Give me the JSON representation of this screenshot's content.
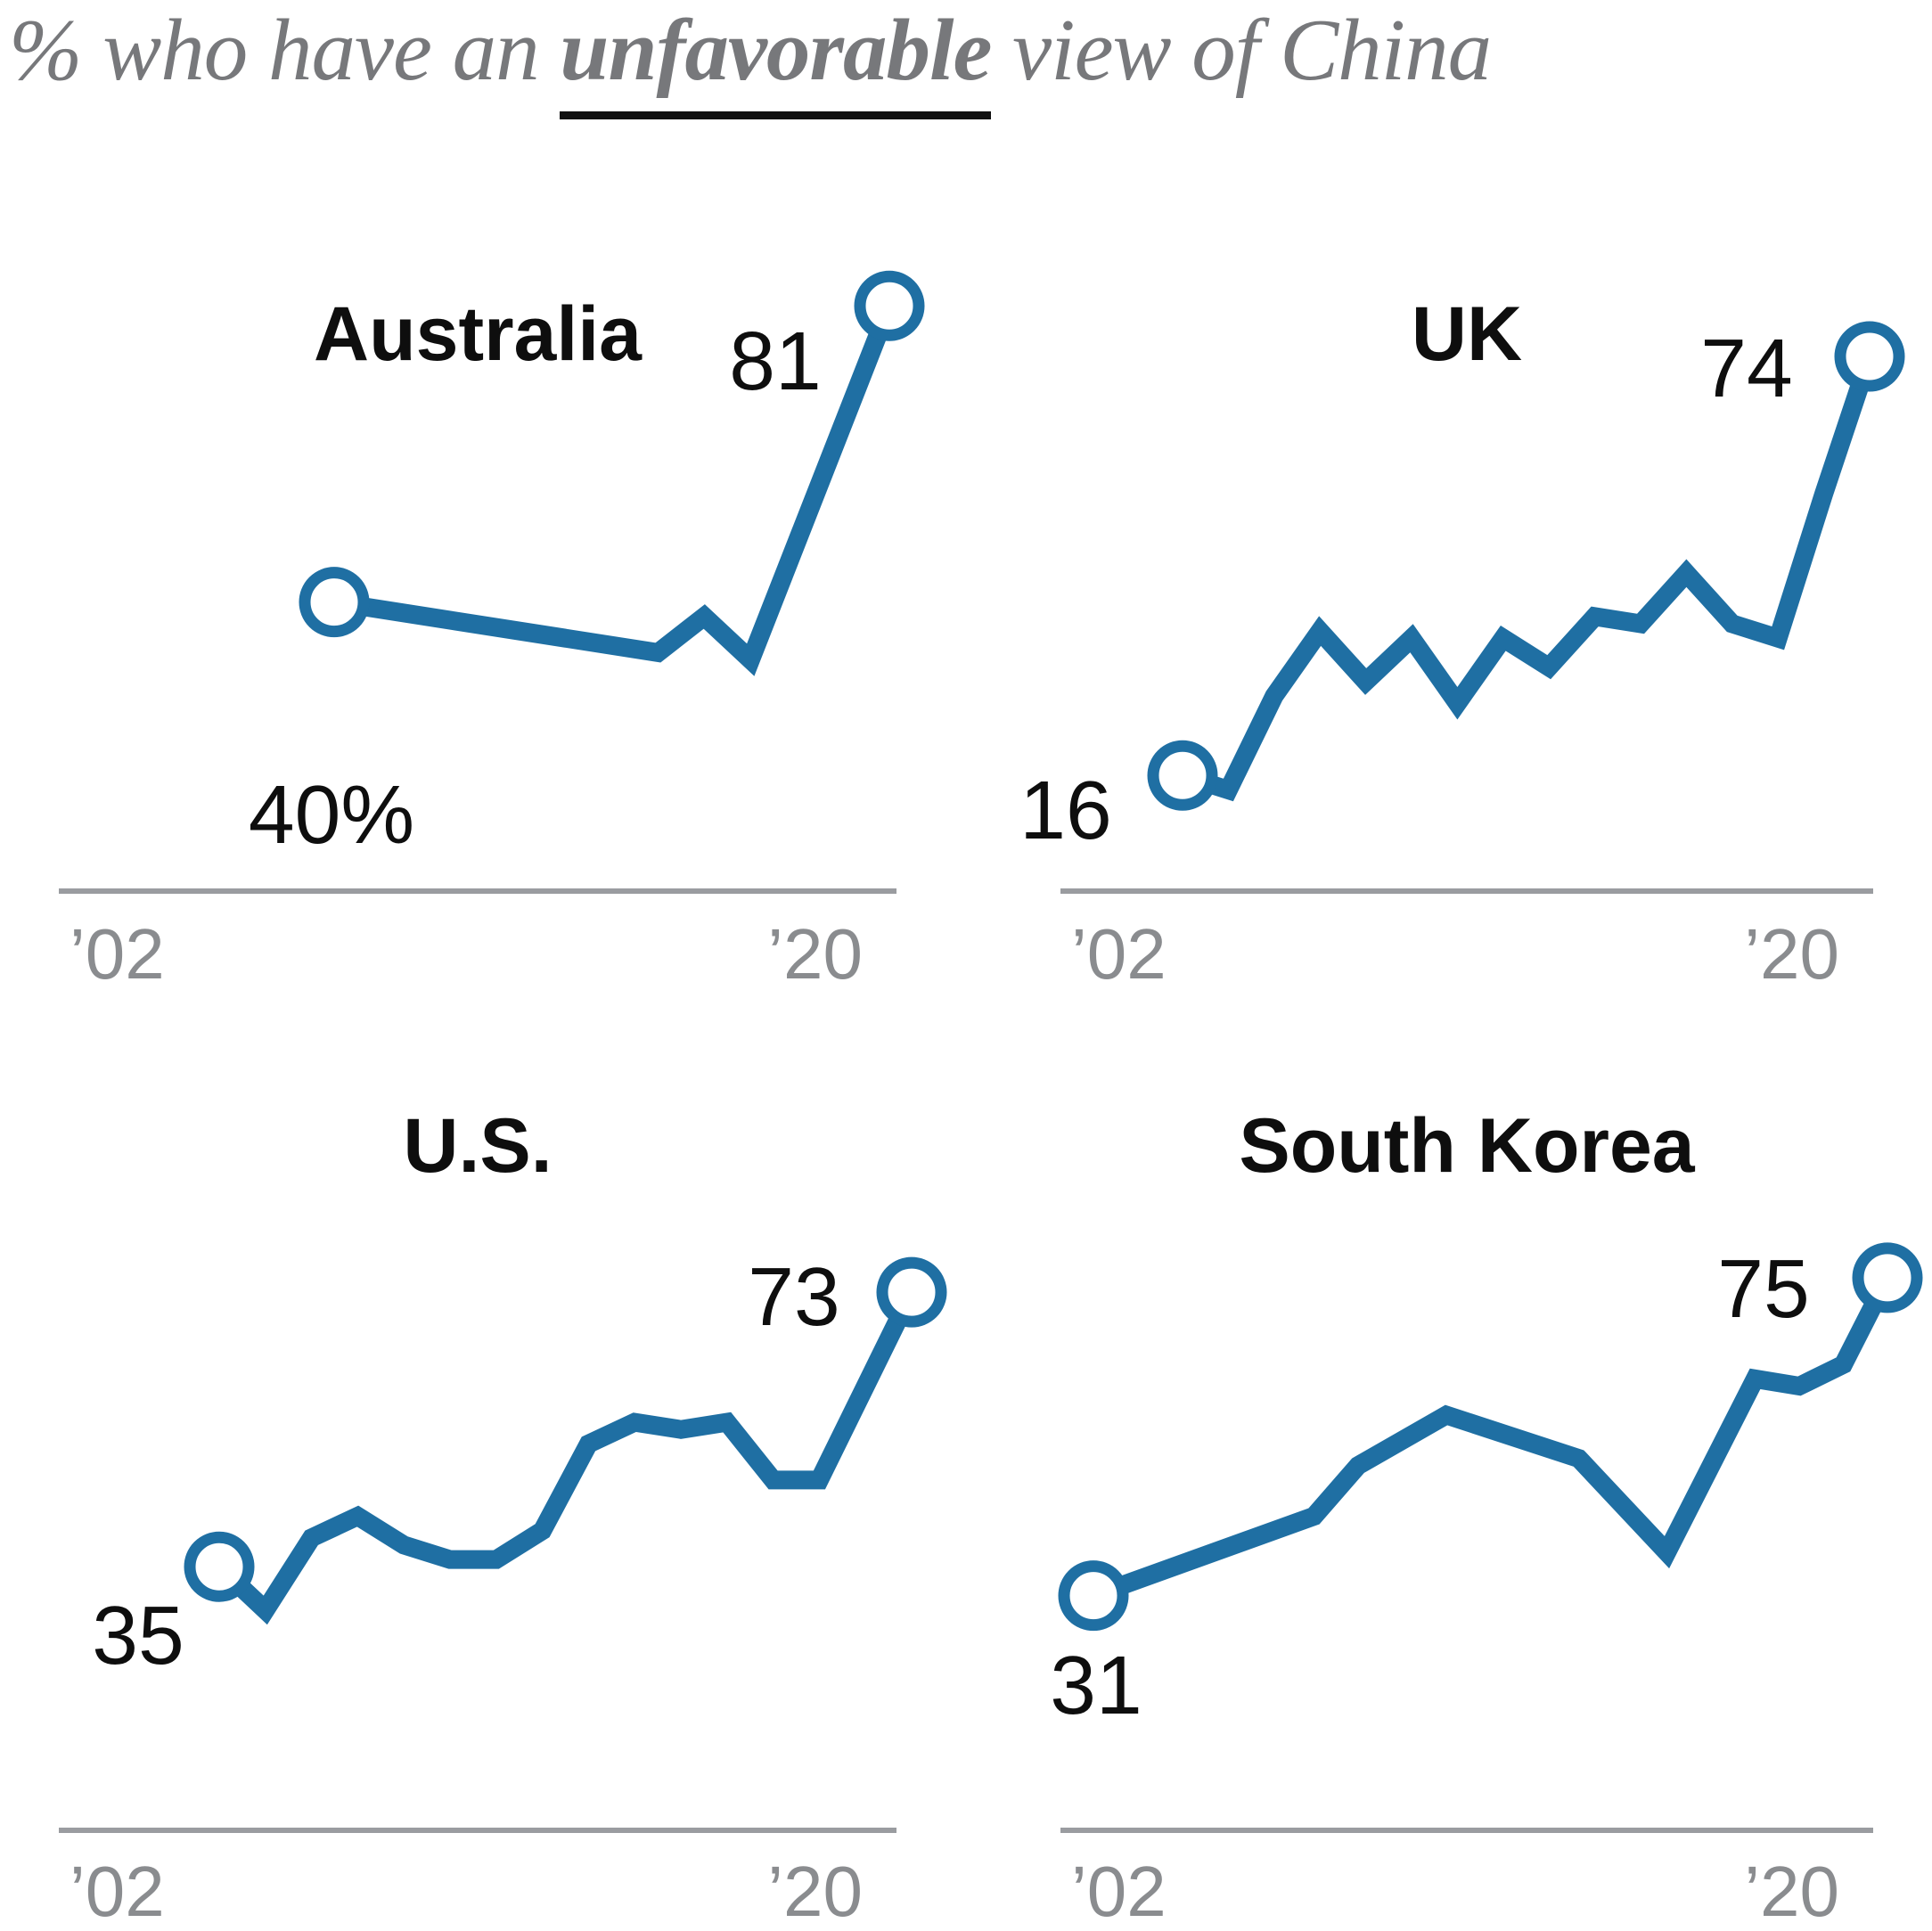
{
  "header": {
    "title_prefix": "% who have an ",
    "title_emphasis": "unfavorable",
    "title_suffix": " view of China"
  },
  "colors": {
    "line_blue": "#1f6fa3",
    "title_gray": "#77787b",
    "tick_gray": "#8a8c8f",
    "axis_gray": "#9a9ca0",
    "label_black": "#0e0e0e",
    "underline_black": "#111111",
    "marker_fill": "#ffffff"
  },
  "chart_data": [
    {
      "type": "line",
      "country": "Australia",
      "x": [
        2008,
        2013,
        2015,
        2016,
        2017,
        2020
      ],
      "values": [
        40,
        35,
        33,
        38,
        32,
        81
      ],
      "x_spacing": "years",
      "first_point_label": "40%",
      "last_point_label": "81",
      "tick_labels": [
        "’02",
        "’20"
      ],
      "xlim": [
        2002,
        2020
      ],
      "ylim": [
        0,
        90
      ],
      "grid": false,
      "legend": "none"
    },
    {
      "type": "line",
      "country": "UK",
      "x": [
        2002,
        2006,
        2007,
        2008,
        2009,
        2010,
        2011,
        2012,
        2013,
        2014,
        2015,
        2016,
        2017,
        2018,
        2019,
        2020
      ],
      "values": [
        16,
        14,
        27,
        36,
        29,
        35,
        26,
        35,
        31,
        38,
        37,
        44,
        37,
        35,
        55,
        74
      ],
      "x_spacing": "equal",
      "first_point_label": "16",
      "last_point_label": "74",
      "tick_labels": [
        "’02",
        "’20"
      ],
      "xlim": [
        2002,
        2020
      ],
      "ylim": [
        0,
        90
      ],
      "grid": false,
      "legend": "none"
    },
    {
      "type": "line",
      "country": "U.S.",
      "x": [
        2002,
        2006,
        2007,
        2008,
        2009,
        2010,
        2011,
        2012,
        2013,
        2014,
        2015,
        2016,
        2017,
        2018,
        2019,
        2020
      ],
      "values": [
        35,
        29,
        39,
        42,
        38,
        36,
        36,
        40,
        52,
        55,
        54,
        55,
        47,
        47,
        60,
        73
      ],
      "x_spacing": "equal",
      "first_point_label": "35",
      "last_point_label": "73",
      "tick_labels": [
        "’02",
        "’20"
      ],
      "xlim": [
        2002,
        2020
      ],
      "ylim": [
        0,
        90
      ],
      "grid": false,
      "legend": "none"
    },
    {
      "type": "line",
      "country": "South Korea",
      "x": [
        2002,
        2007,
        2008,
        2010,
        2013,
        2015,
        2017,
        2018,
        2019,
        2020
      ],
      "values": [
        31,
        42,
        49,
        56,
        50,
        37,
        61,
        60,
        63,
        75
      ],
      "x_spacing": "years",
      "first_point_label": "31",
      "last_point_label": "75",
      "tick_labels": [
        "’02",
        "’20"
      ],
      "xlim": [
        2002,
        2020
      ],
      "ylim": [
        0,
        90
      ],
      "grid": false,
      "legend": "none"
    }
  ]
}
